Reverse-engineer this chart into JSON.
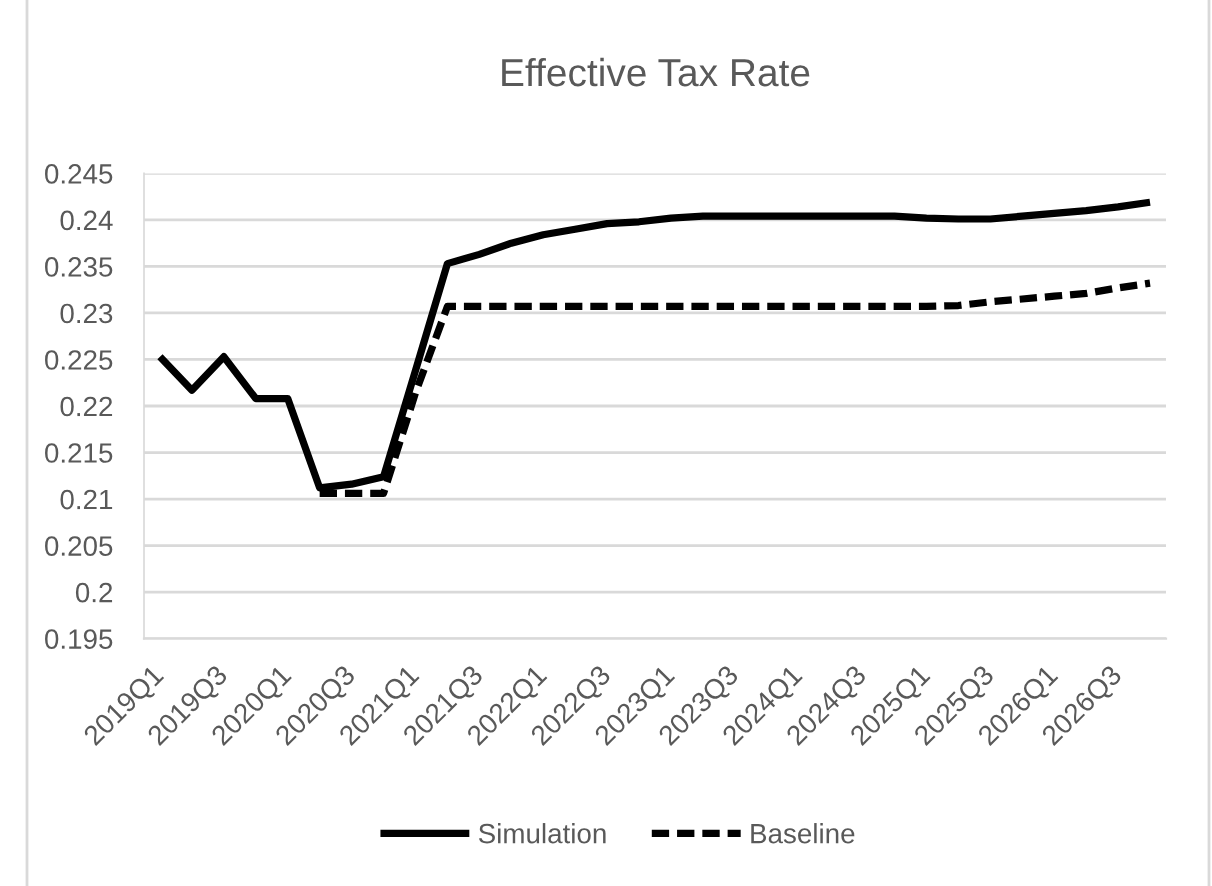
{
  "chart_data": {
    "type": "line",
    "title": "Effective Tax Rate",
    "categories": [
      "2019Q1",
      null,
      "2019Q3",
      null,
      "2020Q1",
      null,
      "2020Q3",
      null,
      "2021Q1",
      null,
      "2021Q3",
      null,
      "2022Q1",
      null,
      "2022Q3",
      null,
      "2023Q1",
      null,
      "2023Q3",
      null,
      "2024Q1",
      null,
      "2024Q3",
      null,
      "2025Q1",
      null,
      "2025Q3",
      null,
      "2026Q1",
      null,
      "2026Q3",
      null
    ],
    "series": [
      {
        "name": "Simulation",
        "color": "#000000",
        "line_style": "solid",
        "values": [
          0.2253,
          0.2217,
          0.2253,
          0.2208,
          0.2208,
          0.2112,
          0.2116,
          0.2124,
          0.2238,
          0.2353,
          0.2363,
          0.2375,
          0.2384,
          0.239,
          0.2396,
          0.2398,
          0.2402,
          0.2404,
          0.2404,
          0.2404,
          0.2404,
          0.2404,
          0.2404,
          0.2404,
          0.2402,
          0.2401,
          0.2401,
          0.2404,
          0.2407,
          0.241,
          0.2414,
          0.2419
        ]
      },
      {
        "name": "Baseline",
        "color": "#000000",
        "line_style": "dashed",
        "values": [
          null,
          null,
          null,
          null,
          null,
          0.2106,
          0.2106,
          0.2106,
          0.2214,
          0.2307,
          0.2307,
          0.2307,
          0.2307,
          0.2307,
          0.2307,
          0.2307,
          0.2307,
          0.2307,
          0.2307,
          0.2307,
          0.2307,
          0.2307,
          0.2307,
          0.2307,
          0.2307,
          0.2308,
          0.2312,
          0.2315,
          0.2318,
          0.2321,
          0.2327,
          0.2332
        ]
      }
    ],
    "ylim": [
      0.195,
      0.245
    ],
    "yticks": [
      0.195,
      0.2,
      0.205,
      0.21,
      0.215,
      0.22,
      0.225,
      0.23,
      0.235,
      0.24,
      0.245
    ],
    "grid": "y",
    "legend": "bottom"
  }
}
